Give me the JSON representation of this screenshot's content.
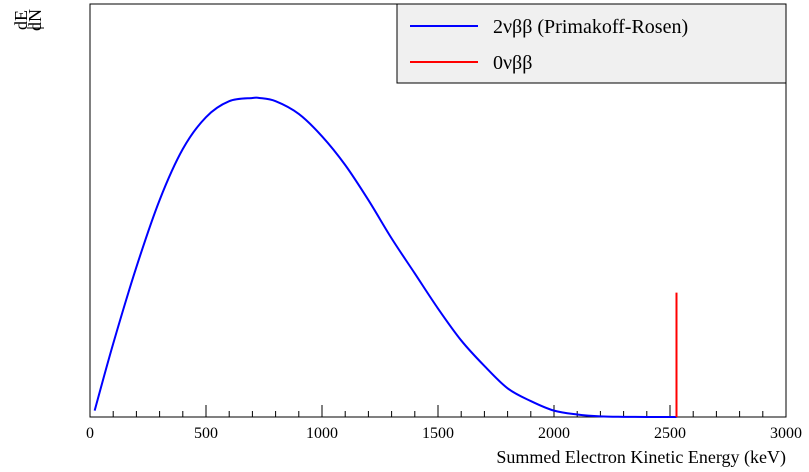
{
  "chart_data": {
    "type": "line",
    "xlabel": "Summed Electron Kinetic Energy (keV)",
    "ylabel": "dN/dE",
    "ylabel_num": "dN",
    "ylabel_den": "dE",
    "xlim": [
      0,
      3000
    ],
    "ylim": [
      0,
      1
    ],
    "x_ticks": [
      0,
      500,
      1000,
      1500,
      2000,
      2500,
      3000
    ],
    "x_tick_labels": [
      "0",
      "500",
      "1000",
      "1500",
      "2000",
      "2500",
      "3000"
    ],
    "y_axis_numeric_labels": false,
    "grid": false,
    "legend_position": "top-right",
    "series": [
      {
        "name": "2νββ (Primakoff-Rosen)",
        "color": "#0000ff",
        "kind": "curve",
        "x": [
          20,
          100,
          200,
          300,
          400,
          500,
          600,
          700,
          730,
          800,
          900,
          1000,
          1100,
          1200,
          1300,
          1400,
          1500,
          1600,
          1700,
          1800,
          1900,
          2000,
          2100,
          2200,
          2300,
          2400,
          2528
        ],
        "y": [
          0.02,
          0.23,
          0.47,
          0.68,
          0.84,
          0.94,
          0.99,
          1.0,
          1.0,
          0.99,
          0.95,
          0.88,
          0.79,
          0.68,
          0.56,
          0.45,
          0.34,
          0.24,
          0.16,
          0.09,
          0.05,
          0.02,
          0.008,
          0.002,
          0.0005,
          0.0001,
          0.0
        ]
      },
      {
        "name": "0νββ",
        "color": "#ff0000",
        "kind": "spike",
        "x": [
          2528
        ],
        "y": [
          0.39
        ]
      }
    ]
  }
}
